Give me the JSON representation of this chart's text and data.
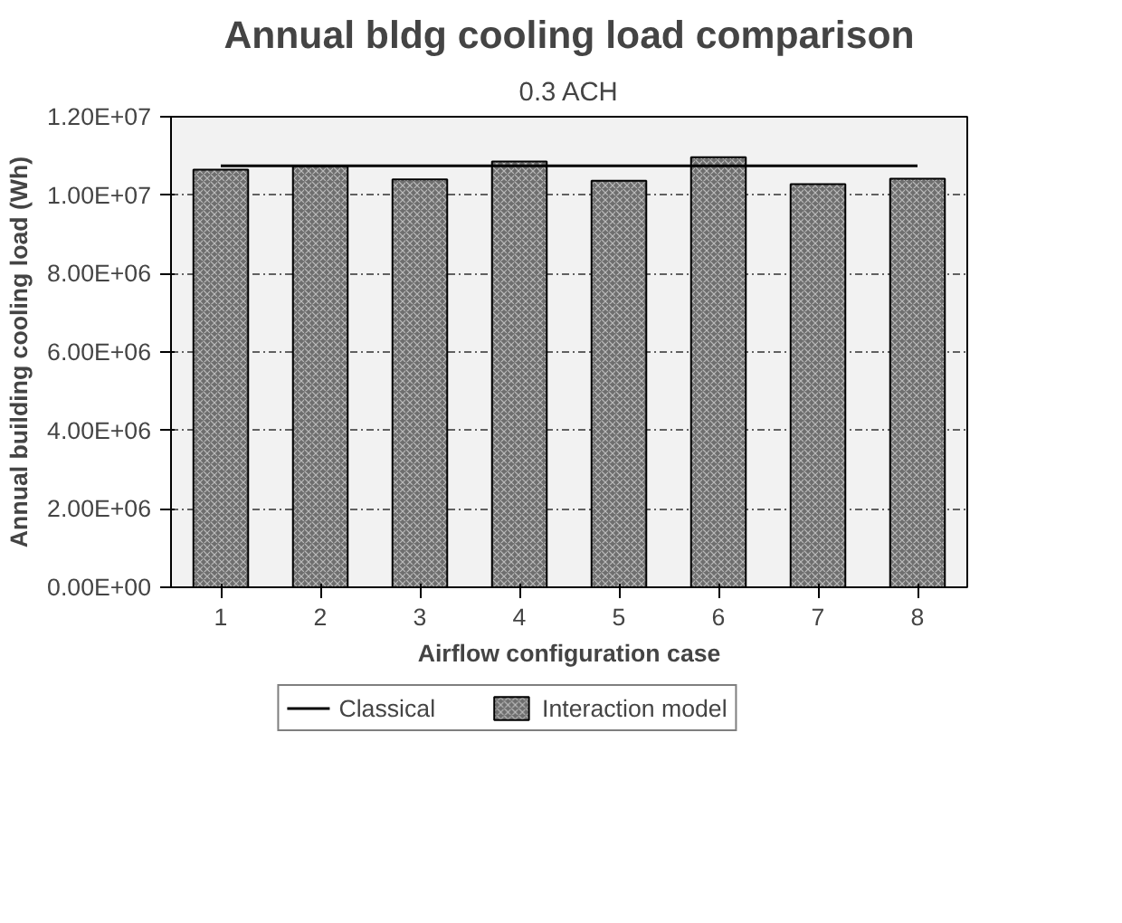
{
  "chart_data": {
    "type": "bar",
    "title": "Annual bldg cooling load comparison",
    "subtitle": "0.3 ACH",
    "xlabel": "Airflow configuration case",
    "ylabel": "Annual building cooling load (Wh)",
    "categories": [
      "1",
      "2",
      "3",
      "4",
      "5",
      "6",
      "7",
      "8"
    ],
    "series": [
      {
        "name": "Classical",
        "type": "line",
        "color": "#000000",
        "values": [
          10750000,
          10750000,
          10750000,
          10750000,
          10750000,
          10750000,
          10750000,
          10750000
        ]
      },
      {
        "name": "Interaction model",
        "color": "#6e6e6e",
        "values": [
          10650000,
          10740000,
          10400000,
          10860000,
          10370000,
          10970000,
          10280000,
          10420000
        ]
      }
    ],
    "ylim": [
      0,
      12000000
    ],
    "yticks": [
      {
        "value": 0,
        "label": "0.00E+00"
      },
      {
        "value": 2000000,
        "label": "2.00E+06"
      },
      {
        "value": 4000000,
        "label": "4.00E+06"
      },
      {
        "value": 6000000,
        "label": "6.00E+06"
      },
      {
        "value": 8000000,
        "label": "8.00E+06"
      },
      {
        "value": 10000000,
        "label": "1.00E+07"
      },
      {
        "value": 12000000,
        "label": "1.20E+07"
      }
    ],
    "grid": "y",
    "legend": "bottom"
  }
}
